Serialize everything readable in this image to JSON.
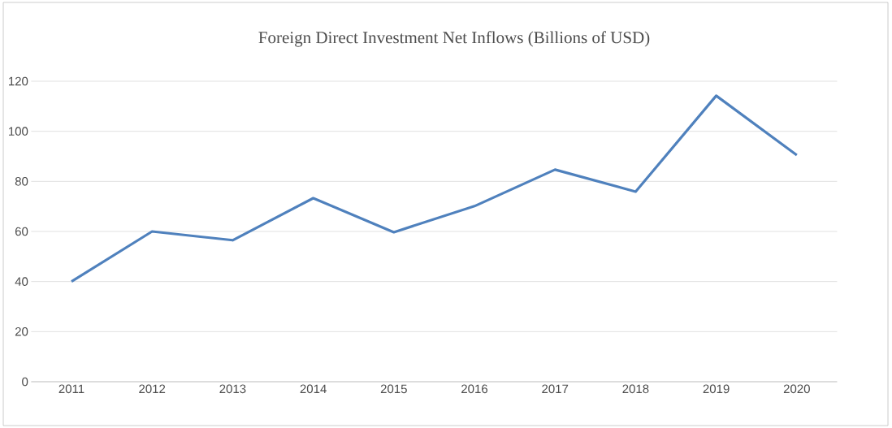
{
  "chart_data": {
    "type": "line",
    "title": "Foreign Direct Investment Net Inflows (Billions of USD)",
    "categories": [
      "2011",
      "2012",
      "2013",
      "2014",
      "2015",
      "2016",
      "2017",
      "2018",
      "2019",
      "2020"
    ],
    "series": [
      {
        "color": "#4f81bd",
        "values": [
          40,
          60,
          56.5,
          73.3,
          59.7,
          70.1,
          84.7,
          75.9,
          114.2,
          90.5
        ]
      }
    ],
    "ylim": [
      0,
      120
    ],
    "yticks": [
      0,
      20,
      40,
      60,
      80,
      100,
      120
    ],
    "grid": "y",
    "marker": "none",
    "line_style": "solid"
  }
}
